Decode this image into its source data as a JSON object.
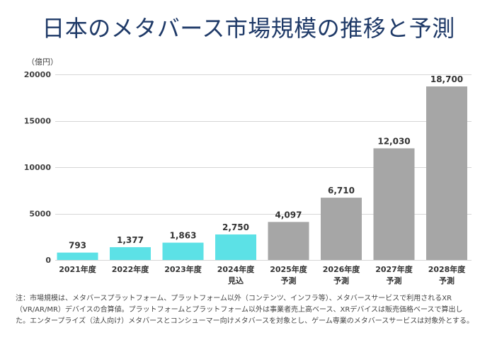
{
  "chart_data": {
    "type": "bar",
    "title": "日本のメタバース市場規模の推移と予測",
    "ylabel": "（億円）",
    "xlabel": "",
    "categories": [
      "2021年度",
      "2022年度",
      "2023年度",
      "2024年度",
      "2025年度",
      "2026年度",
      "2027年度",
      "2028年度"
    ],
    "category_sublabels": [
      null,
      null,
      null,
      "見込",
      "予測",
      "予測",
      "予測",
      "予測"
    ],
    "values": [
      793,
      1377,
      1863,
      2750,
      4097,
      6710,
      12030,
      18700
    ],
    "value_labels": [
      "793",
      "1,377",
      "1,863",
      "2,750",
      "4,097",
      "6,710",
      "12,030",
      "18,700"
    ],
    "bar_colors": [
      "#5ce1e6",
      "#5ce1e6",
      "#5ce1e6",
      "#5ce1e6",
      "#a6a6a6",
      "#a6a6a6",
      "#a6a6a6",
      "#a6a6a6"
    ],
    "ylim": [
      0,
      20000
    ],
    "yticks": [
      0,
      5000,
      10000,
      15000,
      20000
    ],
    "grid": true
  },
  "footnote": {
    "lines": [
      "注：市場規模は、メタバースプラットフォーム、プラットフォーム以外（コンテンツ、インフラ等）、メタバースサービスで利用されるXR",
      "（VR/AR/MR）デバイスの合算値。プラットフォームとプラットフォーム以外は事業者売上高ベース、XRデバイスは販売価格ベースで算出し",
      "た。エンタープライズ（法人向け）メタバースとコンシューマー向けメタバースを対象とし、ゲーム専業のメタバースサービスは対象外とする。"
    ]
  }
}
